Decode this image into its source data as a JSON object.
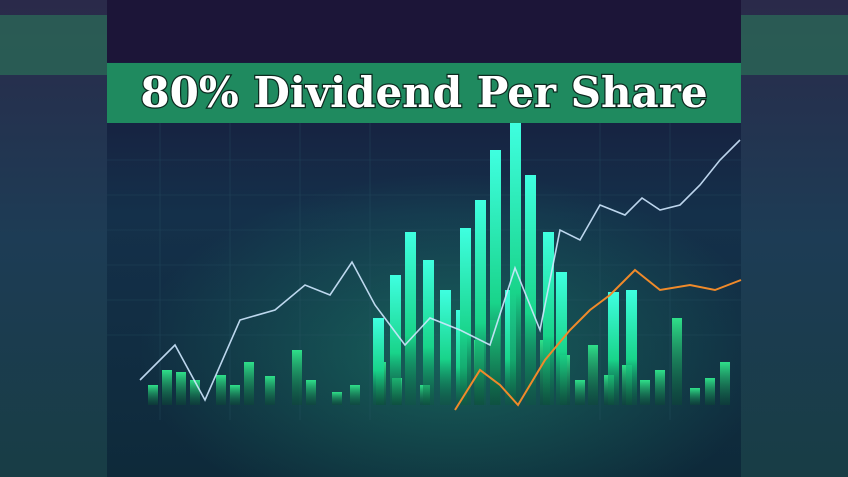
{
  "header": {
    "title": "80% Dividend Per Share"
  }
}
